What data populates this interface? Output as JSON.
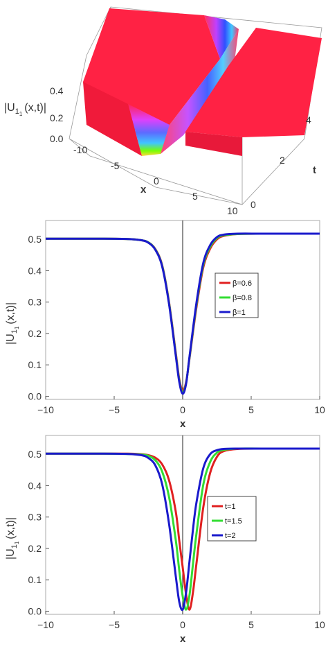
{
  "chart_data": [
    {
      "type": "surface3d",
      "zlabel": "|U",
      "zlabel_sub": "1",
      "zlabel_subsub": "1",
      "zlabel_tail": "(x,t)|",
      "xlabel": "x",
      "tlabel": "t",
      "x_ticks": [
        "-10",
        "-5",
        "0",
        "5",
        "10"
      ],
      "t_ticks": [
        "0",
        "2",
        "4"
      ],
      "z_ticks": [
        "0.0",
        "0.2",
        "0.4"
      ],
      "colors": {
        "plateau": "#ff2244",
        "valley_mid": "#8a2be2",
        "valley_low": "#4fc3f7"
      }
    },
    {
      "type": "line",
      "xlabel": "x",
      "ylabel": "|U",
      "ylabel_sub": "1",
      "ylabel_subsub": "1",
      "ylabel_tail": "(x,t)|",
      "xlim": [
        -10,
        10
      ],
      "ylim": [
        -0.01,
        0.56
      ],
      "x_ticks": [
        -10,
        -5,
        0,
        5,
        10
      ],
      "x_tick_labels": [
        "−10",
        "−5",
        "0",
        "5",
        "10"
      ],
      "y_ticks": [
        0.0,
        0.1,
        0.2,
        0.3,
        0.4,
        0.5
      ],
      "y_tick_labels": [
        "0.0",
        "0.1",
        "0.2",
        "0.3",
        "0.4",
        "0.5"
      ],
      "legend_position": "right",
      "x": [
        -10,
        -6,
        -4,
        -3,
        -2.5,
        -2,
        -1.5,
        -1,
        -0.5,
        -0.25,
        0,
        0.25,
        0.5,
        1,
        1.5,
        2,
        2.5,
        3,
        4,
        6,
        10
      ],
      "series": [
        {
          "name": "β=0.6",
          "color": "#e02020",
          "values": [
            0.502,
            0.502,
            0.501,
            0.497,
            0.49,
            0.469,
            0.418,
            0.301,
            0.137,
            0.055,
            0.018,
            0.045,
            0.121,
            0.282,
            0.41,
            0.47,
            0.5,
            0.511,
            0.517,
            0.518,
            0.518
          ]
        },
        {
          "name": "β=0.8",
          "color": "#33dd33",
          "values": [
            0.502,
            0.502,
            0.501,
            0.497,
            0.49,
            0.468,
            0.416,
            0.298,
            0.132,
            0.05,
            0.012,
            0.042,
            0.124,
            0.29,
            0.418,
            0.476,
            0.504,
            0.513,
            0.517,
            0.518,
            0.518
          ]
        },
        {
          "name": "β=1",
          "color": "#1a1acc",
          "values": [
            0.502,
            0.502,
            0.501,
            0.497,
            0.489,
            0.467,
            0.414,
            0.295,
            0.128,
            0.046,
            0.008,
            0.04,
            0.127,
            0.296,
            0.424,
            0.481,
            0.507,
            0.515,
            0.518,
            0.518,
            0.518
          ]
        }
      ]
    },
    {
      "type": "line",
      "xlabel": "x",
      "ylabel": "|U",
      "ylabel_sub": "1",
      "ylabel_subsub": "1",
      "ylabel_tail": "(x,t)|",
      "xlim": [
        -10,
        10
      ],
      "ylim": [
        -0.01,
        0.56
      ],
      "x_ticks": [
        -10,
        -5,
        0,
        5,
        10
      ],
      "x_tick_labels": [
        "−10",
        "−5",
        "0",
        "5",
        "10"
      ],
      "y_ticks": [
        0.0,
        0.1,
        0.2,
        0.3,
        0.4,
        0.5
      ],
      "y_tick_labels": [
        "0.0",
        "0.1",
        "0.2",
        "0.3",
        "0.4",
        "0.5"
      ],
      "legend_position": "right",
      "x": [
        -10,
        -6,
        -4,
        -3,
        -2.5,
        -2,
        -1.5,
        -1,
        -0.5,
        -0.25,
        0,
        0.25,
        0.5,
        0.75,
        1,
        1.5,
        2,
        2.5,
        3,
        4,
        6,
        10
      ],
      "series": [
        {
          "name": "t=1",
          "color": "#e02020",
          "values": [
            0.502,
            0.502,
            0.502,
            0.5,
            0.497,
            0.489,
            0.468,
            0.418,
            0.316,
            0.225,
            0.14,
            0.053,
            0.005,
            0.06,
            0.15,
            0.33,
            0.44,
            0.492,
            0.51,
            0.517,
            0.518,
            0.518
          ]
        },
        {
          "name": "t=1.5",
          "color": "#33dd33",
          "values": [
            0.502,
            0.502,
            0.501,
            0.499,
            0.495,
            0.481,
            0.445,
            0.365,
            0.225,
            0.13,
            0.048,
            0.005,
            0.052,
            0.15,
            0.245,
            0.402,
            0.475,
            0.505,
            0.514,
            0.518,
            0.518,
            0.518
          ]
        },
        {
          "name": "t=2",
          "color": "#1a1acc",
          "values": [
            0.502,
            0.502,
            0.501,
            0.497,
            0.488,
            0.465,
            0.405,
            0.28,
            0.11,
            0.03,
            0.005,
            0.06,
            0.16,
            0.26,
            0.345,
            0.455,
            0.5,
            0.513,
            0.517,
            0.518,
            0.518,
            0.518
          ]
        }
      ]
    }
  ]
}
